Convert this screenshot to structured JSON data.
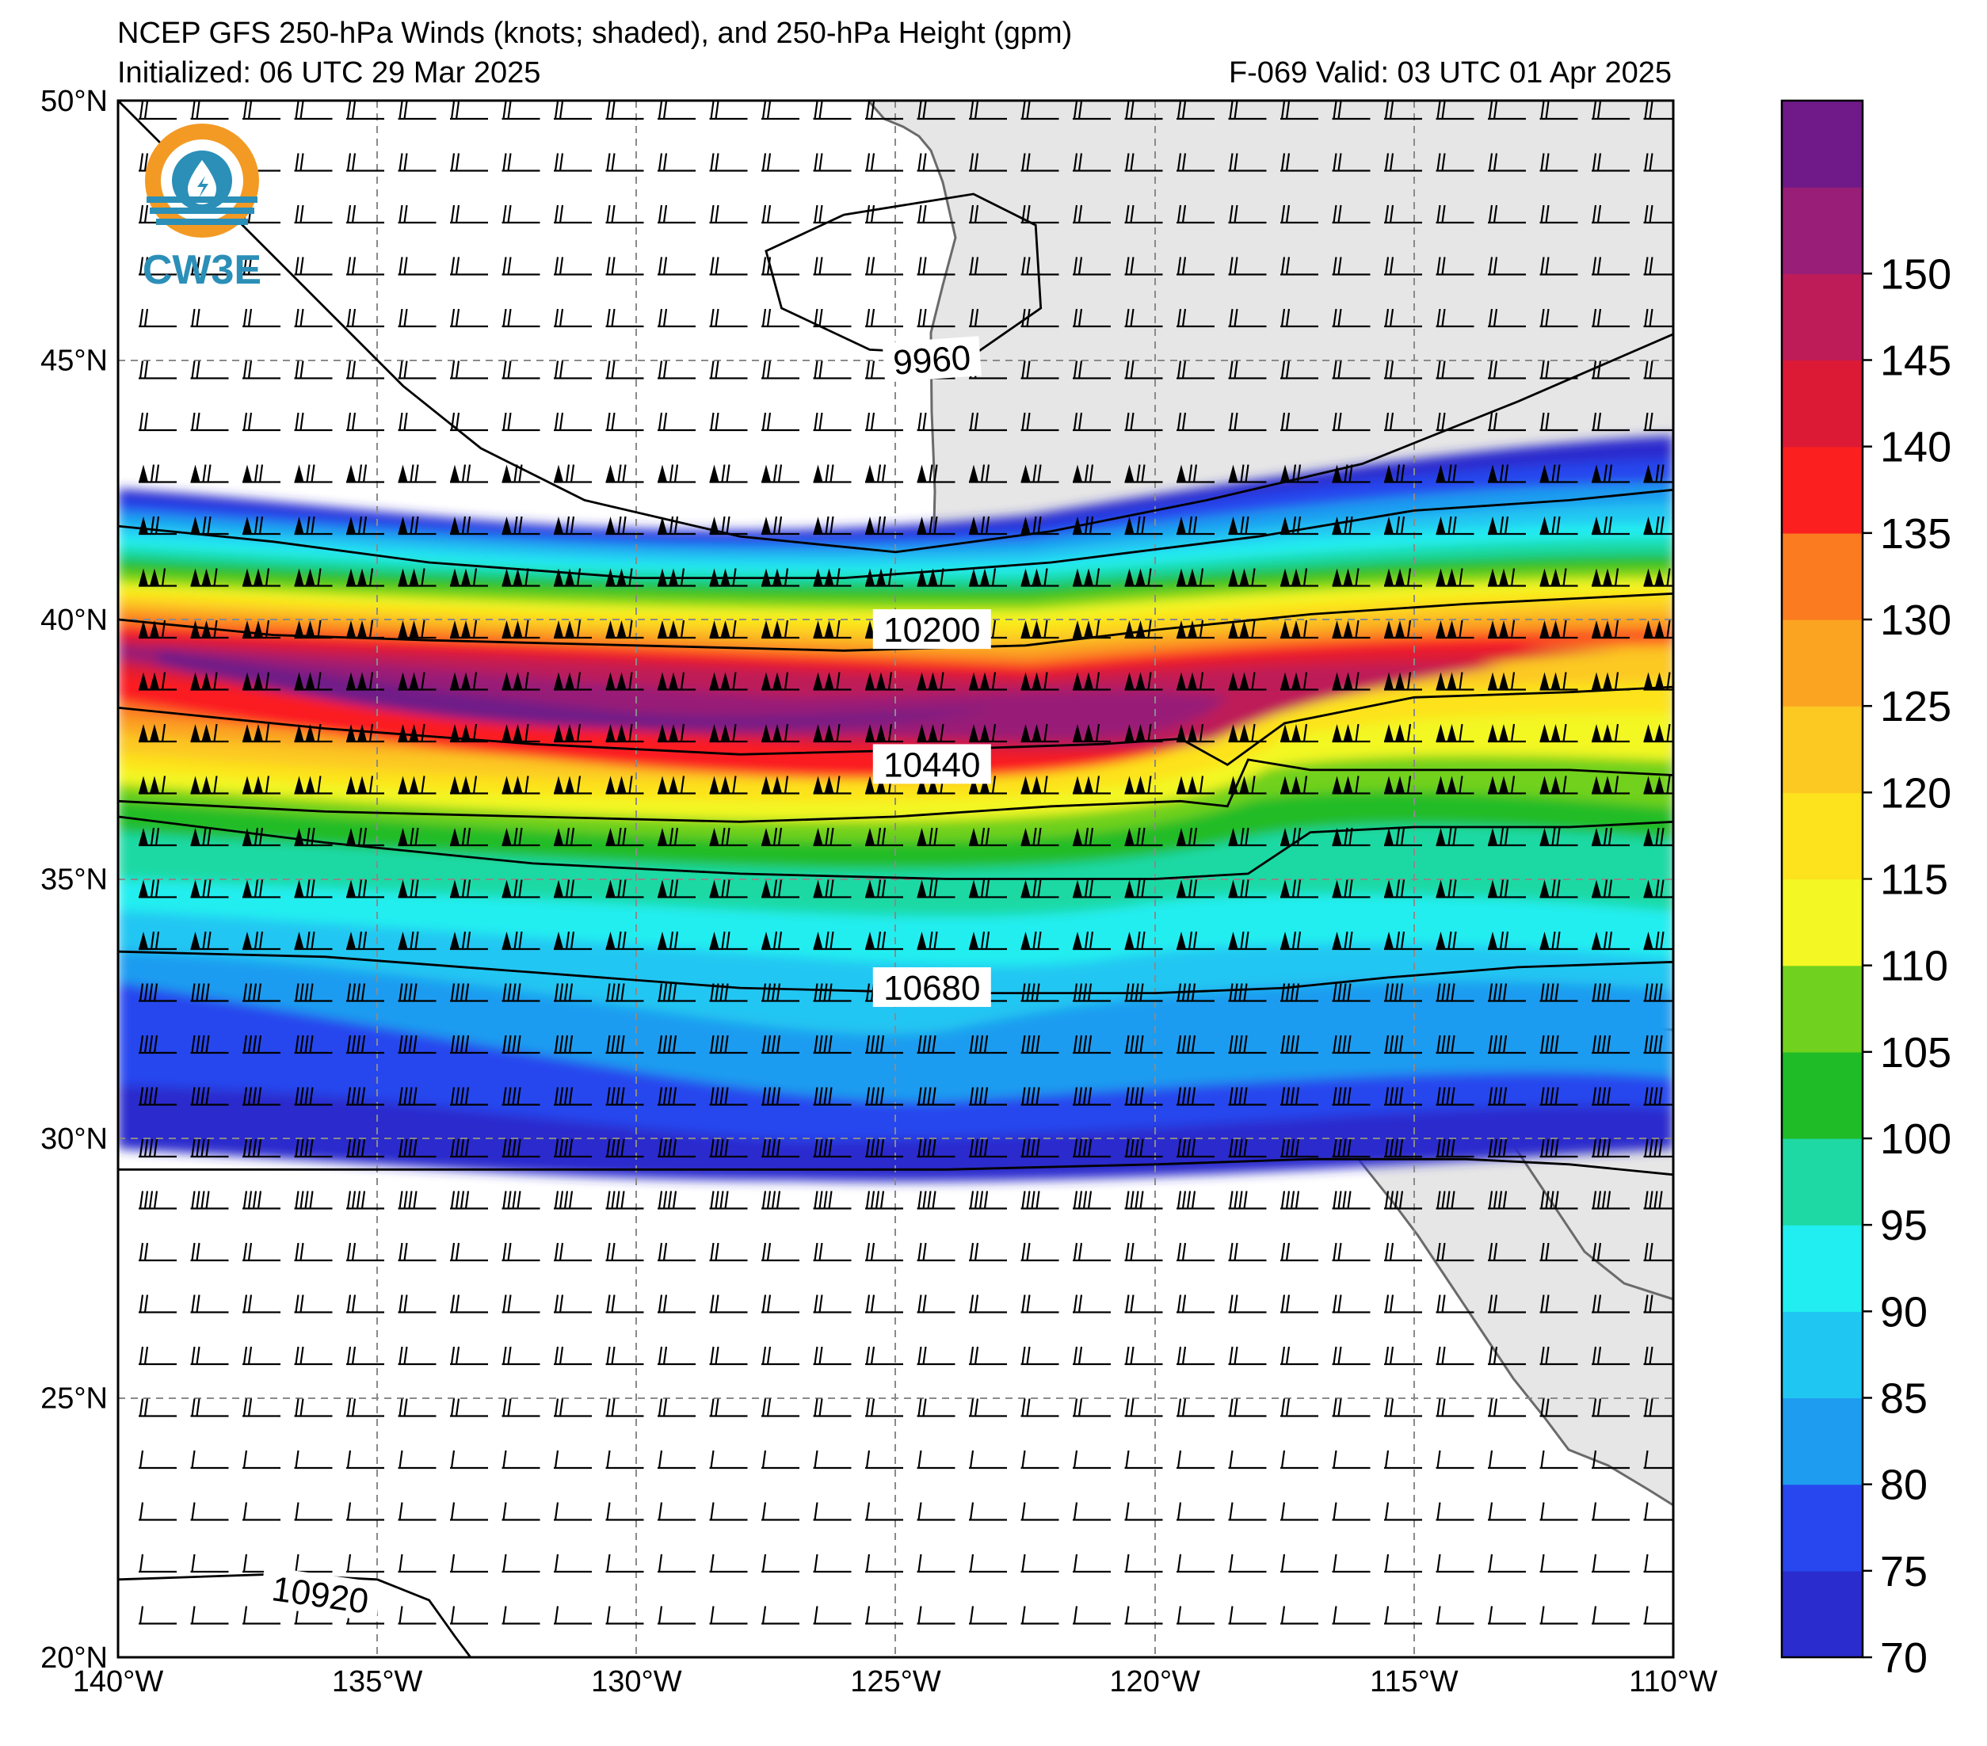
{
  "title": {
    "line1": "NCEP GFS 250-hPa Winds (knots; shaded), and 250-hPa Height (gpm)",
    "line2_left": "Initialized: 06 UTC 29 Mar 2025",
    "line2_right": "F-069  Valid: 03 UTC 01 Apr 2025"
  },
  "logo": {
    "text": "CW3E"
  },
  "map": {
    "lon_labels": [
      "140°W",
      "135°W",
      "130°W",
      "125°W",
      "120°W",
      "115°W",
      "110°W"
    ],
    "lat_labels": [
      "50°N",
      "45°N",
      "40°N",
      "35°N",
      "30°N",
      "25°N",
      "20°N"
    ],
    "lon_range": [
      -140,
      -110
    ],
    "lat_range": [
      20,
      50
    ],
    "gridlines": "dashed every 5°"
  },
  "height_contours": [
    {
      "label": "9960",
      "path": [
        [
          -140,
          50
        ],
        [
          -138,
          48
        ],
        [
          -136,
          46
        ],
        [
          -134.5,
          44.5
        ],
        [
          -133,
          43.3
        ],
        [
          -131,
          42.3
        ],
        [
          -128,
          41.6
        ],
        [
          -125,
          41.3
        ],
        [
          -122,
          41.7
        ],
        [
          -119,
          42.3
        ],
        [
          -116,
          43.0
        ],
        [
          -113,
          44.2
        ],
        [
          -110,
          45.5
        ]
      ]
    },
    {
      "label": "",
      "path": [
        [
          -126,
          47.8
        ],
        [
          -127.5,
          47.1
        ],
        [
          -127.2,
          46.0
        ],
        [
          -125.5,
          45.2
        ],
        [
          -123.5,
          45.1
        ],
        [
          -122.2,
          46.0
        ],
        [
          -122.3,
          47.6
        ],
        [
          -123.5,
          48.2
        ],
        [
          -126,
          47.8
        ]
      ]
    },
    {
      "label": "",
      "path": [
        [
          -140,
          41.8
        ],
        [
          -137,
          41.5
        ],
        [
          -134,
          41.1
        ],
        [
          -130,
          40.8
        ],
        [
          -126,
          40.8
        ],
        [
          -122,
          41.1
        ],
        [
          -118,
          41.6
        ],
        [
          -115,
          42.1
        ],
        [
          -112,
          42.3
        ],
        [
          -110,
          42.5
        ]
      ]
    },
    {
      "label": "10200",
      "path": [
        [
          -140,
          40.0
        ],
        [
          -137,
          39.7
        ],
        [
          -134,
          39.6
        ],
        [
          -130,
          39.5
        ],
        [
          -126,
          39.4
        ],
        [
          -122.5,
          39.5
        ],
        [
          -120,
          39.8
        ],
        [
          -117,
          40.1
        ],
        [
          -114,
          40.3
        ],
        [
          -110,
          40.5
        ]
      ]
    },
    {
      "label": "",
      "path": [
        [
          -140,
          38.3
        ],
        [
          -136,
          37.9
        ],
        [
          -132,
          37.6
        ],
        [
          -128,
          37.4
        ],
        [
          -124,
          37.5
        ],
        [
          -121,
          37.6
        ],
        [
          -119.5,
          37.7
        ],
        [
          -118.6,
          37.2
        ],
        [
          -117.5,
          38.0
        ],
        [
          -115,
          38.5
        ],
        [
          -112,
          38.6
        ],
        [
          -110,
          38.7
        ]
      ]
    },
    {
      "label": "10440",
      "path": [
        [
          -140,
          36.5
        ],
        [
          -136,
          36.3
        ],
        [
          -132,
          36.2
        ],
        [
          -128,
          36.1
        ],
        [
          -125,
          36.2
        ],
        [
          -122,
          36.4
        ],
        [
          -119.5,
          36.5
        ],
        [
          -118.6,
          36.4
        ],
        [
          -118.2,
          37.3
        ],
        [
          -117,
          37.1
        ],
        [
          -114,
          37.1
        ],
        [
          -112,
          37.1
        ],
        [
          -110,
          37.0
        ]
      ]
    },
    {
      "label": "",
      "path": [
        [
          -140,
          36.2
        ],
        [
          -136,
          35.7
        ],
        [
          -132,
          35.3
        ],
        [
          -128,
          35.1
        ],
        [
          -124,
          35.0
        ],
        [
          -120,
          35.0
        ],
        [
          -118.2,
          35.1
        ],
        [
          -117,
          35.9
        ],
        [
          -115,
          36.0
        ],
        [
          -112,
          36.0
        ],
        [
          -110,
          36.1
        ]
      ]
    },
    {
      "label": "10680",
      "path": [
        [
          -140,
          33.6
        ],
        [
          -136,
          33.5
        ],
        [
          -132,
          33.2
        ],
        [
          -128,
          32.9
        ],
        [
          -124,
          32.8
        ],
        [
          -120,
          32.8
        ],
        [
          -117.5,
          32.9
        ],
        [
          -115.5,
          33.1
        ],
        [
          -113,
          33.3
        ],
        [
          -110,
          33.4
        ]
      ]
    },
    {
      "label": "",
      "path": [
        [
          -140,
          29.4
        ],
        [
          -136,
          29.4
        ],
        [
          -132,
          29.4
        ],
        [
          -128,
          29.4
        ],
        [
          -124,
          29.4
        ],
        [
          -120,
          29.5
        ],
        [
          -117,
          29.6
        ],
        [
          -114,
          29.6
        ],
        [
          -112,
          29.5
        ],
        [
          -110,
          29.3
        ]
      ]
    },
    {
      "label": "10920",
      "path": [
        [
          -140,
          21.5
        ],
        [
          -137,
          21.6
        ],
        [
          -135,
          21.5
        ],
        [
          -134,
          21.1
        ],
        [
          -133.5,
          20.4
        ],
        [
          -133.2,
          20
        ]
      ]
    }
  ],
  "colorbar": {
    "labels": [
      "70",
      "75",
      "80",
      "85",
      "90",
      "95",
      "100",
      "105",
      "110",
      "115",
      "120",
      "125",
      "130",
      "135",
      "140",
      "145",
      "150"
    ],
    "colors": [
      "#2a2ccd",
      "#2847ee",
      "#1e9cf0",
      "#20c6f2",
      "#21eef0",
      "#1fd9a4",
      "#20bc27",
      "#71d11f",
      "#f3f724",
      "#fde21e",
      "#fcc822",
      "#fba422",
      "#fb7b20",
      "#fb1f20",
      "#dd1a35",
      "#be1b59",
      "#981e77",
      "#6f1a88"
    ],
    "range": [
      70,
      155
    ]
  }
}
